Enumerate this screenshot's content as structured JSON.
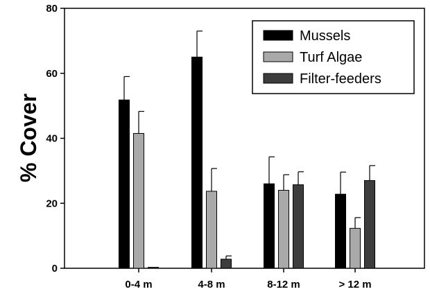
{
  "chart_data": {
    "type": "bar",
    "title": "",
    "xlabel": "",
    "ylabel": "% Cover",
    "ylim": [
      0,
      80
    ],
    "yticks": [
      "0",
      "20",
      "40",
      "60",
      "80"
    ],
    "categories": [
      "0-4 m",
      "4-8 m",
      "8-12 m",
      "> 12 m"
    ],
    "series": [
      {
        "name": "Mussels",
        "color": "#000000",
        "values": [
          51.8,
          65.0,
          26.0,
          22.8
        ],
        "errors": [
          7.2,
          8.0,
          8.3,
          6.8
        ]
      },
      {
        "name": "Turf Algae",
        "color": "#a9a9a9",
        "values": [
          41.5,
          23.7,
          24.0,
          12.3
        ],
        "errors": [
          6.8,
          7.0,
          4.8,
          3.3
        ]
      },
      {
        "name": "Filter-feeders",
        "color": "#3d3d3d",
        "values": [
          0.3,
          2.8,
          25.7,
          27.0
        ],
        "errors": [
          0,
          1.0,
          4.0,
          4.6
        ]
      }
    ],
    "grid": false,
    "legend": "top-right"
  }
}
